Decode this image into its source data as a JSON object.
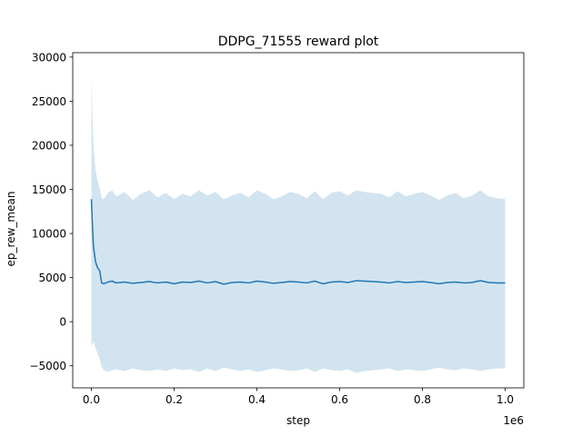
{
  "chart_data": {
    "type": "area",
    "title": "DDPG_71555 reward plot",
    "xlabel": "step",
    "ylabel": "ep_rew_mean",
    "x_offset_text": "1e6",
    "xlim": [
      -45000,
      1045000
    ],
    "ylim": [
      -7500,
      30500
    ],
    "x_ticks": [
      0,
      200000,
      400000,
      600000,
      800000,
      1000000
    ],
    "x_tick_labels": [
      "0.0",
      "0.2",
      "0.4",
      "0.6",
      "0.8",
      "1.0"
    ],
    "y_ticks": [
      -5000,
      0,
      5000,
      10000,
      15000,
      20000,
      25000,
      30000
    ],
    "y_tick_labels": [
      "−5000",
      "0",
      "5000",
      "10000",
      "15000",
      "20000",
      "25000",
      "30000"
    ],
    "grid": false,
    "series": [
      {
        "line_color": "#1f77b4",
        "band_color": "#1f77b4",
        "band_opacity": 0.2,
        "x": [
          0,
          2000,
          5000,
          10000,
          15000,
          20000,
          25000,
          30000,
          40000,
          50000,
          60000,
          80000,
          100000,
          120000,
          140000,
          160000,
          180000,
          200000,
          220000,
          240000,
          260000,
          280000,
          300000,
          320000,
          340000,
          360000,
          380000,
          400000,
          420000,
          440000,
          460000,
          480000,
          500000,
          520000,
          540000,
          560000,
          580000,
          600000,
          620000,
          640000,
          660000,
          680000,
          700000,
          720000,
          740000,
          760000,
          780000,
          800000,
          820000,
          840000,
          860000,
          880000,
          900000,
          920000,
          940000,
          960000,
          980000,
          1000000
        ],
        "mean": [
          13900,
          11500,
          8500,
          6800,
          6100,
          5800,
          4400,
          4300,
          4500,
          4600,
          4400,
          4500,
          4350,
          4450,
          4550,
          4400,
          4500,
          4300,
          4500,
          4450,
          4600,
          4400,
          4550,
          4250,
          4450,
          4500,
          4400,
          4600,
          4500,
          4350,
          4450,
          4550,
          4500,
          4400,
          4600,
          4300,
          4500,
          4550,
          4450,
          4650,
          4600,
          4550,
          4500,
          4400,
          4550,
          4450,
          4500,
          4550,
          4450,
          4300,
          4450,
          4500,
          4400,
          4450,
          4650,
          4450,
          4400,
          4400
        ],
        "upper": [
          28000,
          24500,
          20000,
          17200,
          16000,
          15200,
          14000,
          13900,
          14600,
          14900,
          14200,
          14700,
          13800,
          14500,
          14900,
          14100,
          14600,
          13900,
          14500,
          14200,
          14900,
          14300,
          14700,
          13900,
          14300,
          14600,
          14100,
          14900,
          14500,
          13900,
          14200,
          14700,
          14500,
          14000,
          14800,
          13900,
          14600,
          14800,
          14300,
          14900,
          14700,
          14600,
          14500,
          14100,
          14800,
          14200,
          14500,
          14700,
          14300,
          13800,
          14300,
          14600,
          14000,
          14300,
          14900,
          14200,
          14000,
          13900
        ],
        "lower": [
          -2500,
          -2700,
          -2200,
          -3000,
          -3600,
          -4200,
          -5200,
          -5500,
          -5700,
          -5500,
          -5400,
          -5600,
          -5300,
          -5500,
          -5600,
          -5400,
          -5600,
          -5300,
          -5500,
          -5400,
          -5700,
          -5300,
          -5600,
          -5200,
          -5400,
          -5600,
          -5400,
          -5700,
          -5500,
          -5300,
          -5400,
          -5600,
          -5500,
          -5300,
          -5700,
          -5300,
          -5500,
          -5600,
          -5400,
          -5800,
          -5600,
          -5500,
          -5400,
          -5300,
          -5600,
          -5400,
          -5500,
          -5600,
          -5400,
          -5200,
          -5400,
          -5500,
          -5300,
          -5400,
          -5600,
          -5400,
          -5300,
          -5300
        ]
      }
    ]
  }
}
